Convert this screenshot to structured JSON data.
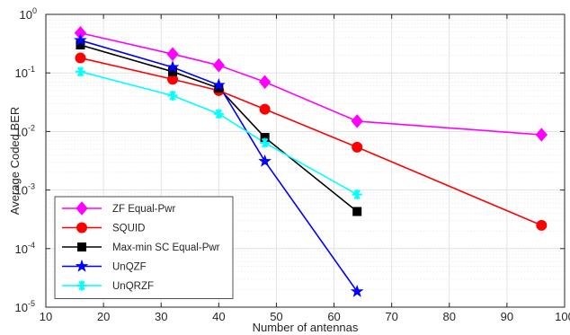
{
  "chart_data": {
    "type": "line",
    "xlabel": "Number of antennas",
    "ylabel": "Average Coded BER",
    "xlim": [
      10,
      100
    ],
    "ylim_log10": [
      -5,
      0
    ],
    "yscale": "log",
    "grid": true,
    "legend_position": "bottom-left",
    "x_ticks": [
      "10",
      "20",
      "30",
      "40",
      "50",
      "60",
      "70",
      "80",
      "90",
      "100"
    ],
    "y_ticks": [
      {
        "base": "10",
        "exp": "-5"
      },
      {
        "base": "10",
        "exp": "-4"
      },
      {
        "base": "10",
        "exp": "-3"
      },
      {
        "base": "10",
        "exp": "-2"
      },
      {
        "base": "10",
        "exp": "-1"
      },
      {
        "base": "10",
        "exp": "0"
      }
    ],
    "series": [
      {
        "name": "ZF Equal-Pwr",
        "color": "#ff00ff",
        "marker": "diamond",
        "x": [
          16,
          32,
          40,
          48,
          64,
          96
        ],
        "y": [
          0.48,
          0.21,
          0.135,
          0.07,
          0.015,
          0.0088
        ]
      },
      {
        "name": "SQUID",
        "color": "#ff0000",
        "marker": "circle",
        "x": [
          16,
          32,
          40,
          48,
          64,
          96
        ],
        "y": [
          0.18,
          0.078,
          0.05,
          0.024,
          0.0054,
          0.00025
        ]
      },
      {
        "name": "Max-min SC Equal-Pwr",
        "color": "#000000",
        "marker": "square",
        "x": [
          16,
          32,
          40,
          48,
          64
        ],
        "y": [
          0.3,
          0.105,
          0.055,
          0.0079,
          0.00043
        ]
      },
      {
        "name": "UnQZF",
        "color": "#0000ff",
        "marker": "star",
        "x": [
          16,
          32,
          40,
          48,
          64
        ],
        "y": [
          0.36,
          0.125,
          0.062,
          0.0031,
          1.85e-05
        ]
      },
      {
        "name": "UnQRZF",
        "color": "#00ffff",
        "marker": "asterisk",
        "x": [
          16,
          32,
          40,
          48,
          64
        ],
        "y": [
          0.105,
          0.041,
          0.02,
          0.0064,
          0.00084
        ]
      }
    ]
  }
}
